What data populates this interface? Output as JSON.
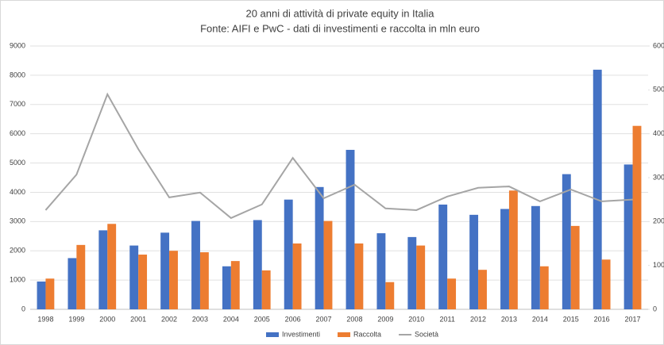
{
  "chart_data": {
    "type": "bar",
    "title": "20 anni di attività di private equity in Italia",
    "subtitle": "Fonte: AIFI e PwC - dati di investimenti e raccolta in mln euro",
    "categories": [
      "1998",
      "1999",
      "2000",
      "2001",
      "2002",
      "2003",
      "2004",
      "2005",
      "2006",
      "2007",
      "2008",
      "2009",
      "2010",
      "2011",
      "2012",
      "2013",
      "2014",
      "2015",
      "2016",
      "2017"
    ],
    "series": [
      {
        "name": "Investimenti",
        "type": "bar",
        "color": "#4472c4",
        "values": [
          950,
          1750,
          2700,
          2180,
          2620,
          3020,
          1470,
          3050,
          3750,
          4180,
          5450,
          2600,
          2470,
          3580,
          3230,
          3430,
          3530,
          4620,
          8190,
          4950
        ]
      },
      {
        "name": "Raccolta",
        "type": "bar",
        "color": "#ed7d31",
        "values": [
          1050,
          2200,
          2920,
          1870,
          2000,
          1950,
          1650,
          1330,
          2250,
          3020,
          2250,
          930,
          2180,
          1050,
          1350,
          4060,
          1470,
          2850,
          1700,
          6270
        ]
      },
      {
        "name": "Società",
        "type": "line",
        "axis": "y2",
        "color": "#a5a5a5",
        "values": [
          226,
          307,
          490,
          365,
          255,
          266,
          208,
          239,
          345,
          253,
          284,
          230,
          226,
          257,
          277,
          280,
          246,
          273,
          246,
          250
        ]
      }
    ],
    "ylim": [
      0,
      9000
    ],
    "yticks": [
      0,
      1000,
      2000,
      3000,
      4000,
      5000,
      6000,
      7000,
      8000,
      9000
    ],
    "y2lim": [
      0,
      600
    ],
    "y2ticks": [
      0,
      100,
      200,
      300,
      400,
      500,
      600
    ],
    "grid": true,
    "legend": "bottom"
  }
}
